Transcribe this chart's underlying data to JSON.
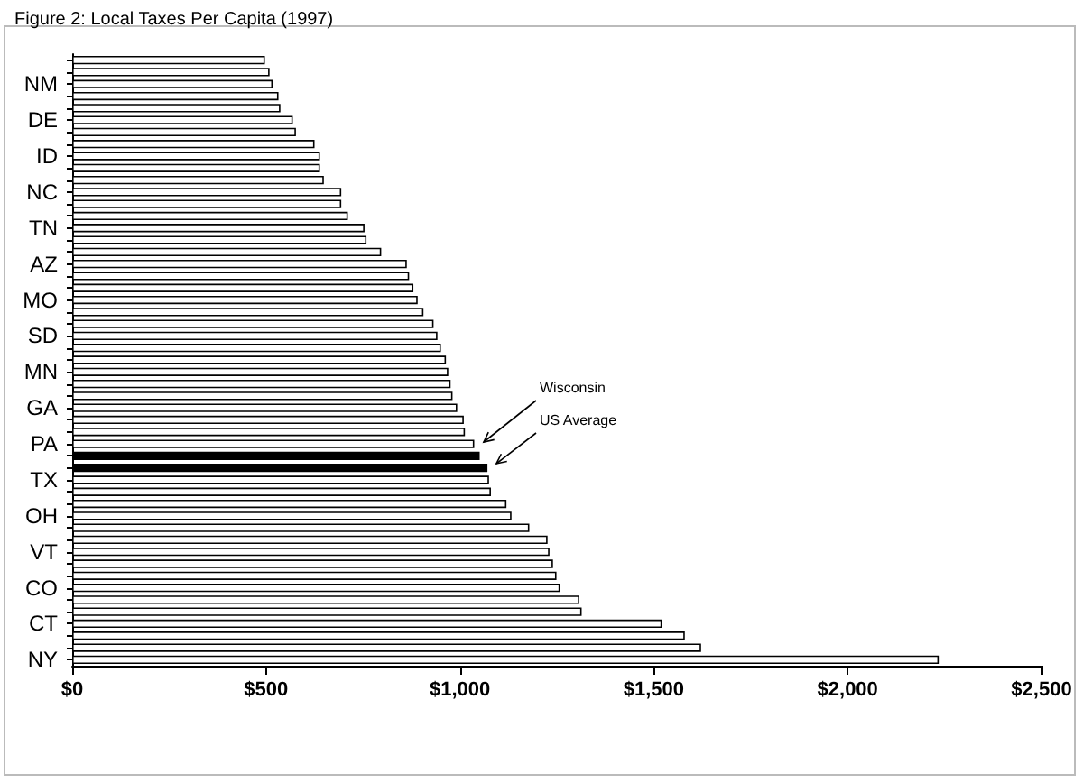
{
  "chart_data": {
    "type": "bar",
    "orientation": "horizontal",
    "title": "Figure 2: Local Taxes Per Capita (1997)",
    "categories": [
      null,
      null,
      "NM",
      null,
      null,
      "DE",
      null,
      null,
      "ID",
      null,
      null,
      "NC",
      null,
      null,
      "TN",
      null,
      null,
      "AZ",
      null,
      null,
      "MO",
      null,
      null,
      "SD",
      null,
      null,
      "MN",
      null,
      null,
      "GA",
      null,
      null,
      "PA",
      null,
      null,
      "TX",
      null,
      null,
      "OH",
      null,
      null,
      "VT",
      null,
      null,
      "CO",
      null,
      null,
      "CT",
      null,
      null,
      "NY"
    ],
    "values": [
      497,
      509,
      517,
      532,
      537,
      569,
      577,
      625,
      639,
      639,
      649,
      694,
      694,
      711,
      754,
      759,
      797,
      863,
      869,
      880,
      891,
      906,
      932,
      942,
      951,
      964,
      970,
      976,
      981,
      993,
      1010,
      1013,
      1037,
      1051,
      1071,
      1075,
      1080,
      1120,
      1133,
      1179,
      1226,
      1231,
      1240,
      1249,
      1258,
      1308,
      1314,
      1521,
      1580,
      1622,
      2235
    ],
    "colors": [
      "#ffffff",
      "#ffffff",
      "#ffffff",
      "#ffffff",
      "#ffffff",
      "#ffffff",
      "#ffffff",
      "#ffffff",
      "#ffffff",
      "#ffffff",
      "#ffffff",
      "#ffffff",
      "#ffffff",
      "#ffffff",
      "#ffffff",
      "#ffffff",
      "#ffffff",
      "#ffffff",
      "#ffffff",
      "#ffffff",
      "#ffffff",
      "#ffffff",
      "#ffffff",
      "#ffffff",
      "#ffffff",
      "#ffffff",
      "#ffffff",
      "#ffffff",
      "#ffffff",
      "#ffffff",
      "#ffffff",
      "#ffffff",
      "#ffffff",
      "#000000",
      "#000000",
      "#ffffff",
      "#ffffff",
      "#ffffff",
      "#ffffff",
      "#ffffff",
      "#ffffff",
      "#ffffff",
      "#ffffff",
      "#ffffff",
      "#ffffff",
      "#ffffff",
      "#ffffff",
      "#ffffff",
      "#ffffff",
      "#ffffff",
      "#ffffff"
    ],
    "xlim": [
      0,
      2500
    ],
    "xticks": [
      {
        "value": 0,
        "label": "$0"
      },
      {
        "value": 500,
        "label": "$500"
      },
      {
        "value": 1000,
        "label": "$1,000"
      },
      {
        "value": 1500,
        "label": "$1,500"
      },
      {
        "value": 2000,
        "label": "$2,000"
      },
      {
        "value": 2500,
        "label": "$2,500"
      }
    ],
    "annotations": [
      "Wisconsin",
      "US Average"
    ],
    "grid": false
  }
}
